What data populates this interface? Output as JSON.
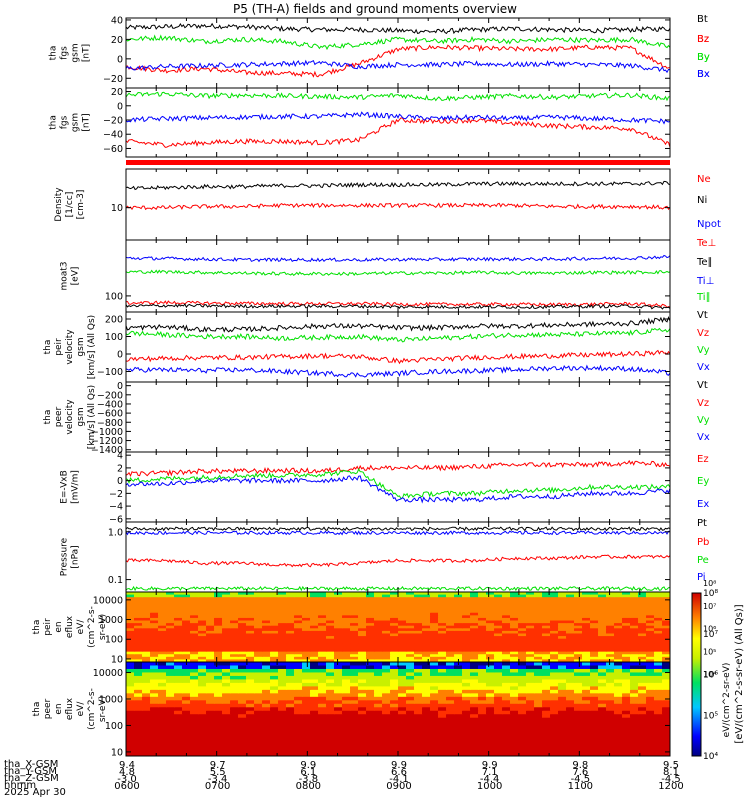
{
  "title": "P5 (TH-A) fields and ground moments overview",
  "colors": {
    "black": "#000000",
    "red": "#ff0000",
    "green": "#00e000",
    "blue": "#0000ff"
  },
  "footer": {
    "rows": [
      {
        "label": "tha_X-GSM",
        "values": [
          "9.4",
          "9.7",
          "9.9",
          "9.9",
          "9.9",
          "9.8",
          "9.5"
        ]
      },
      {
        "label": "tha_Y-GSM",
        "values": [
          "4.8",
          "5.5",
          "6.1",
          "6.6",
          "7.1",
          "7.6",
          "8.1"
        ]
      },
      {
        "label": "tha_Z-GSM",
        "values": [
          "-3.0",
          "-3.4",
          "-3.8",
          "-4.1",
          "-4.4",
          "-4.5",
          "-4.5"
        ]
      },
      {
        "label": "hhmm",
        "values": [
          "0600",
          "0700",
          "0800",
          "0900",
          "1000",
          "1100",
          "1200"
        ]
      }
    ],
    "date": "2025 Apr 30"
  },
  "colorbar": {
    "tick_labels": [
      "10⁴",
      "10⁵",
      "10⁶",
      "10⁷",
      "10⁸"
    ],
    "label": "eV/(cm^2-s-sr-eV) (All Qs)",
    "label2": "eV/(cm^2-sr-eV)",
    "range": [
      10000.0,
      100000000.0
    ]
  },
  "chart_data": [
    {
      "type": "line",
      "id": "fgs",
      "ylabel": [
        "tha",
        "fgs",
        "gsm",
        "[nT]"
      ],
      "ylim": [
        -30,
        42
      ],
      "ticks": [
        40,
        20,
        0,
        -20
      ],
      "tick_labels": [
        "40",
        "20",
        "0",
        "−20"
      ],
      "series": [
        {
          "name": "Bt",
          "color": "#000000",
          "values": [
            32,
            33,
            34,
            33,
            31,
            30,
            30,
            29,
            28,
            30,
            31,
            30,
            29,
            30,
            31
          ]
        },
        {
          "name": "Bz",
          "color": "#ff0000",
          "values": [
            -8,
            -12,
            -10,
            -14,
            -15,
            -16,
            -5,
            10,
            12,
            11,
            10,
            10,
            12,
            11,
            -10
          ]
        },
        {
          "name": "By",
          "color": "#00e000",
          "values": [
            20,
            22,
            18,
            20,
            18,
            12,
            15,
            20,
            18,
            20,
            18,
            20,
            19,
            20,
            12
          ]
        },
        {
          "name": "Bx",
          "color": "#0000ff",
          "values": [
            -10,
            -8,
            -7,
            -6,
            -5,
            -4,
            -8,
            -6,
            -6,
            -5,
            -6,
            -5,
            -6,
            -7,
            -12
          ]
        }
      ]
    },
    {
      "type": "line",
      "id": "fgm",
      "ylabel": [
        "tha",
        "fgs",
        "gsm",
        "[nT]"
      ],
      "ylim": [
        -72,
        25
      ],
      "ticks": [
        20,
        0,
        -20,
        -40,
        -60
      ],
      "tick_labels": [
        "20",
        "0",
        "−20",
        "−40",
        "−60"
      ],
      "series": [
        {
          "name": "Bz",
          "color": "#ff0000",
          "values": [
            -50,
            -55,
            -52,
            -50,
            -50,
            -52,
            -48,
            -20,
            -22,
            -20,
            -25,
            -28,
            -30,
            -32,
            -55
          ]
        },
        {
          "name": "By",
          "color": "#00e000",
          "values": [
            15,
            17,
            14,
            15,
            14,
            13,
            12,
            15,
            10,
            12,
            14,
            12,
            14,
            15,
            10
          ]
        },
        {
          "name": "Bx",
          "color": "#0000ff",
          "values": [
            -20,
            -18,
            -17,
            -16,
            -15,
            -15,
            -12,
            -15,
            -18,
            -16,
            -18,
            -16,
            -18,
            -20,
            -22
          ]
        }
      ]
    },
    {
      "type": "line",
      "id": "density",
      "ylabel": [
        "Density",
        "[1/cc]",
        "[cm-3]"
      ],
      "scale": "log",
      "ylim": [
        2.6,
        50
      ],
      "ticks": [
        10
      ],
      "tick_labels": [
        "10"
      ],
      "series": [
        {
          "name": "Ne",
          "color": "#ff0000",
          "values": [
            10,
            10,
            10.5,
            10.5,
            11,
            11,
            11,
            11,
            11,
            11,
            11,
            10.5,
            10.5,
            10.5,
            10
          ]
        },
        {
          "name": "Ni",
          "color": "#000000",
          "values": [
            22,
            23,
            24,
            24,
            25,
            25,
            26,
            26,
            26,
            27,
            27,
            27,
            27,
            27,
            28
          ]
        },
        {
          "name": "Npot",
          "color": "#0000ff",
          "values": [
            null,
            null,
            null,
            null,
            null,
            null,
            null,
            null,
            null,
            null,
            null,
            null,
            null,
            null,
            null
          ]
        }
      ]
    },
    {
      "type": "line",
      "id": "temperature",
      "ylabel": [
        "moat3",
        "[eV]"
      ],
      "scale": "log",
      "ylim": [
        45,
        1600
      ],
      "ticks": [
        100
      ],
      "tick_labels": [
        "100"
      ],
      "series": [
        {
          "name": "Te⊥",
          "color": "#ff0000",
          "values": [
            70,
            72,
            70,
            69,
            68,
            68,
            68,
            66,
            66,
            66,
            66,
            65,
            66,
            68,
            60
          ]
        },
        {
          "name": "Te∥",
          "color": "#000000",
          "values": [
            60,
            62,
            61,
            60,
            60,
            60,
            60,
            58,
            58,
            58,
            58,
            58,
            60,
            60,
            55
          ]
        },
        {
          "name": "Ti⊥",
          "color": "#0000ff",
          "values": [
            650,
            640,
            620,
            600,
            600,
            600,
            600,
            610,
            610,
            620,
            620,
            620,
            640,
            650,
            700
          ]
        },
        {
          "name": "Ti∥",
          "color": "#00e000",
          "values": [
            330,
            330,
            320,
            310,
            300,
            300,
            300,
            310,
            310,
            320,
            310,
            310,
            320,
            320,
            330
          ]
        }
      ]
    },
    {
      "type": "line",
      "id": "peir-velocity",
      "ylabel": [
        "tha",
        "peir",
        "velocity",
        "gsm",
        "[km/s] (All Qs)"
      ],
      "ylim": [
        -160,
        240
      ],
      "ticks": [
        200,
        100,
        0,
        -100
      ],
      "tick_labels": [
        "200",
        "100",
        "0",
        "−100"
      ],
      "series": [
        {
          "name": "Vt",
          "color": "#000000",
          "values": [
            150,
            155,
            140,
            140,
            150,
            160,
            160,
            150,
            150,
            160,
            160,
            165,
            170,
            175,
            200
          ]
        },
        {
          "name": "Vz",
          "color": "#ff0000",
          "values": [
            -30,
            -25,
            -20,
            -20,
            -15,
            -10,
            -15,
            -40,
            -30,
            -20,
            -15,
            -10,
            -5,
            0,
            10
          ]
        },
        {
          "name": "Vy",
          "color": "#00e000",
          "values": [
            120,
            110,
            100,
            100,
            90,
            95,
            100,
            80,
            90,
            100,
            110,
            110,
            115,
            120,
            140
          ]
        },
        {
          "name": "Vx",
          "color": "#0000ff",
          "values": [
            -90,
            -90,
            -95,
            -90,
            -100,
            -110,
            -120,
            -110,
            -100,
            -95,
            -90,
            -80,
            -80,
            -85,
            -110
          ]
        }
      ]
    },
    {
      "type": "line",
      "id": "peer-velocity",
      "ylabel": [
        "tha",
        "peer",
        "velocity",
        "gsm",
        "[km/s] (All Qs)"
      ],
      "ylim": [
        -1450,
        80
      ],
      "ticks": [
        0,
        -200,
        -400,
        -600,
        -800,
        -1000,
        -1200,
        -1400
      ],
      "tick_labels": [
        "0",
        "−200",
        "−400",
        "−600",
        "−800",
        "−1000",
        "−1200",
        "−1400"
      ],
      "series": [
        {
          "name": "Vt",
          "color": "#000000",
          "values": []
        },
        {
          "name": "Vz",
          "color": "#ff0000",
          "values": []
        },
        {
          "name": "Vy",
          "color": "#00e000",
          "values": []
        },
        {
          "name": "Vx",
          "color": "#0000ff",
          "values": []
        }
      ]
    },
    {
      "type": "line",
      "id": "efield",
      "ylabel": [
        "E=-VxB",
        "[mV/m]"
      ],
      "ylim": [
        -6.5,
        4.5
      ],
      "ticks": [
        4,
        2,
        0,
        -2,
        -4,
        -6
      ],
      "tick_labels": [
        "4",
        "2",
        "0",
        "−2",
        "−4",
        "−6"
      ],
      "series": [
        {
          "name": "Ez",
          "color": "#ff0000",
          "values": [
            1,
            1.2,
            1.5,
            1.5,
            1.6,
            1.5,
            2,
            2,
            2,
            2.2,
            2.5,
            2.5,
            2.5,
            2.8,
            2.5
          ]
        },
        {
          "name": "Ey",
          "color": "#00e000",
          "values": [
            0,
            0.3,
            0.5,
            0.8,
            0.8,
            1,
            1.5,
            -2.5,
            -2,
            -2,
            -1.5,
            -1.5,
            -1,
            -1,
            -1
          ]
        },
        {
          "name": "Ex",
          "color": "#0000ff",
          "values": [
            -0.5,
            -0.5,
            0,
            0,
            0,
            0,
            0.5,
            -3,
            -3,
            -3,
            -2.5,
            -2.5,
            -2,
            -2,
            -1.5
          ]
        }
      ]
    },
    {
      "type": "line",
      "id": "pressure",
      "ylabel": [
        "Pressure",
        "[nPa]"
      ],
      "scale": "log",
      "ylim": [
        0.055,
        1.6
      ],
      "ticks": [
        1,
        0.1
      ],
      "tick_labels": [
        "1.0",
        "0.1"
      ],
      "series": [
        {
          "name": "Pt",
          "color": "#000000",
          "values": [
            1.15,
            1.15,
            1.15,
            1.15,
            1.15,
            1.15,
            1.15,
            1.15,
            1.15,
            1.15,
            1.15,
            1.15,
            1.15,
            1.15,
            1.15
          ]
        },
        {
          "name": "Pb",
          "color": "#ff0000",
          "values": [
            0.25,
            0.25,
            0.22,
            0.22,
            0.2,
            0.2,
            0.22,
            0.25,
            0.25,
            0.25,
            0.28,
            0.28,
            0.3,
            0.3,
            0.3
          ]
        },
        {
          "name": "Pe",
          "color": "#00e000",
          "values": [
            0.065,
            0.065,
            0.065,
            0.065,
            0.065,
            0.065,
            0.065,
            0.065,
            0.065,
            0.065,
            0.065,
            0.065,
            0.065,
            0.065,
            0.065
          ]
        },
        {
          "name": "Pi",
          "color": "#0000ff",
          "values": [
            0.95,
            0.95,
            0.95,
            0.95,
            0.95,
            0.95,
            0.95,
            0.95,
            0.95,
            0.95,
            0.95,
            0.95,
            0.95,
            0.95,
            0.95
          ]
        }
      ]
    },
    {
      "type": "heatmap",
      "id": "peir-spectrogram",
      "ylabel": [
        "tha",
        "peir",
        "en",
        "eflux",
        "eV/",
        "(cm^2-s-",
        "sr-eV)"
      ],
      "scale": "log",
      "ylim": [
        7,
        25000
      ],
      "ticks": [
        10000,
        1000,
        100,
        10
      ],
      "tick_labels": [
        "10000",
        "1000",
        "100",
        "10"
      ]
    },
    {
      "type": "heatmap",
      "id": "peer-spectrogram",
      "ylabel": [
        "tha",
        "peer",
        "en",
        "eflux",
        "eV/",
        "(cm^2-s-",
        "sr-eV)"
      ],
      "scale": "log",
      "ylim": [
        7,
        25000
      ],
      "ticks": [
        10000,
        1000,
        100,
        10
      ],
      "tick_labels": [
        "10000",
        "1000",
        "100",
        "10"
      ]
    }
  ]
}
